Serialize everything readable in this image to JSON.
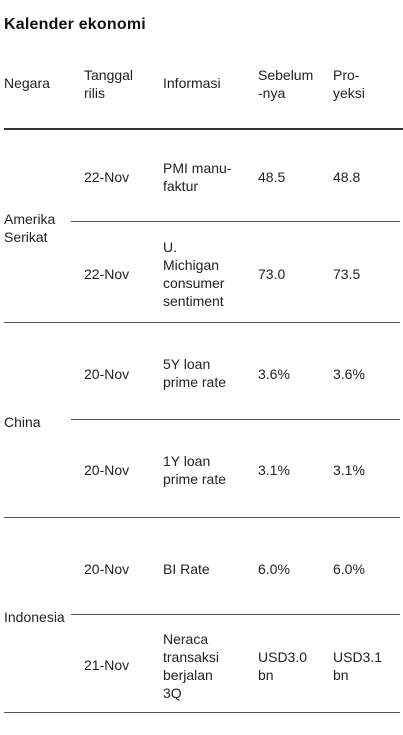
{
  "title": "Kalender ekonomi",
  "headers": {
    "country": "Negara",
    "date": "Tanggal\nrilis",
    "info": "Informasi",
    "previous": "Sebelum\n-nya",
    "projection": "Pro-\nyeksi"
  },
  "groups": [
    {
      "country": "Amerika\nSerikat",
      "rows": [
        {
          "date": "22-Nov",
          "info": "PMI manu-\nfaktur",
          "previous": "48.5",
          "projection": "48.8"
        },
        {
          "date": "22-Nov",
          "info": "U.\nMichigan\nconsumer\nsentiment",
          "previous": "73.0",
          "projection": "73.5"
        }
      ]
    },
    {
      "country": "China",
      "rows": [
        {
          "date": "20-Nov",
          "info": "5Y loan\nprime rate",
          "previous": "3.6%",
          "projection": "3.6%"
        },
        {
          "date": "20-Nov",
          "info": "1Y loan\nprime rate",
          "previous": "3.1%",
          "projection": "3.1%"
        }
      ]
    },
    {
      "country": "Indonesia",
      "rows": [
        {
          "date": "20-Nov",
          "info": "BI Rate",
          "previous": "6.0%",
          "projection": "6.0%"
        },
        {
          "date": "21-Nov",
          "info": "Neraca\ntransaksi\nberjalan\n3Q",
          "previous": "USD3.0\nbn",
          "projection": "USD3.1\nbn"
        }
      ]
    }
  ]
}
